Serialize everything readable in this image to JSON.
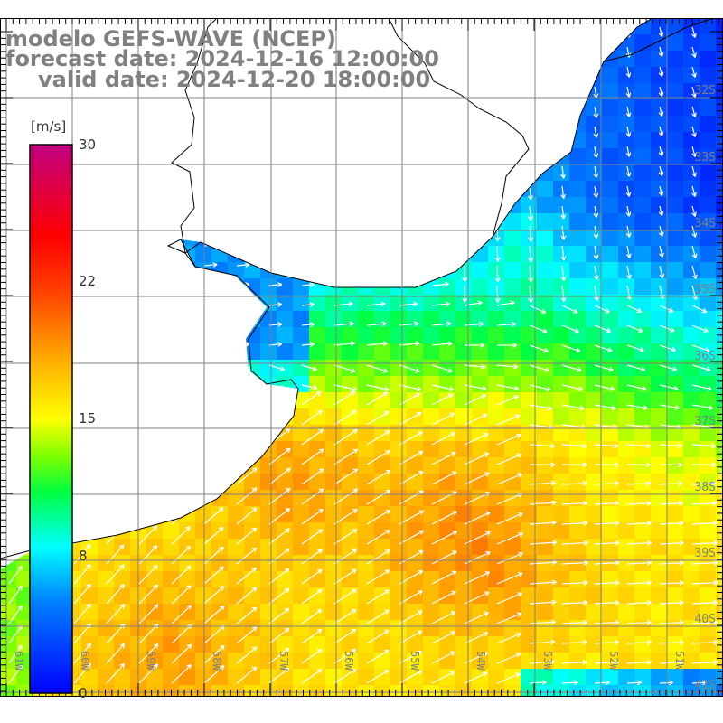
{
  "title": {
    "line1": "modelo GEFS-WAVE (NCEP)",
    "line2": "forecast date: 2024-12-16 12:00:00",
    "line3": "valid date: 2024-12-20 18:00:00"
  },
  "colorbar": {
    "units": "[m/s]",
    "min": 0,
    "max": 30,
    "tick_labels": [
      "30",
      "22",
      "15",
      "8",
      "0"
    ],
    "tick_values": [
      30,
      22,
      15,
      8,
      0
    ],
    "stops": [
      {
        "v": 0,
        "c": "#0000ff"
      },
      {
        "v": 5,
        "c": "#0080ff"
      },
      {
        "v": 8,
        "c": "#00ffff"
      },
      {
        "v": 11,
        "c": "#00ff40"
      },
      {
        "v": 13,
        "c": "#80ff00"
      },
      {
        "v": 15,
        "c": "#ffff00"
      },
      {
        "v": 18.5,
        "c": "#ffa500"
      },
      {
        "v": 22,
        "c": "#ff4000"
      },
      {
        "v": 25,
        "c": "#ff0000"
      },
      {
        "v": 30,
        "c": "#c00080"
      }
    ]
  },
  "lon_labels": [
    "61W",
    "60W",
    "59W",
    "58W",
    "57W",
    "56W",
    "55W",
    "54W",
    "53W",
    "52W",
    "51W"
  ],
  "lat_labels": [
    "32S",
    "33S",
    "34S",
    "35S",
    "36S",
    "37S",
    "38S",
    "39S",
    "40S",
    "41S"
  ],
  "colors": {
    "grid": "#808080",
    "coast": "#000000",
    "label": "#808080",
    "arrow": "#ffffff"
  }
}
